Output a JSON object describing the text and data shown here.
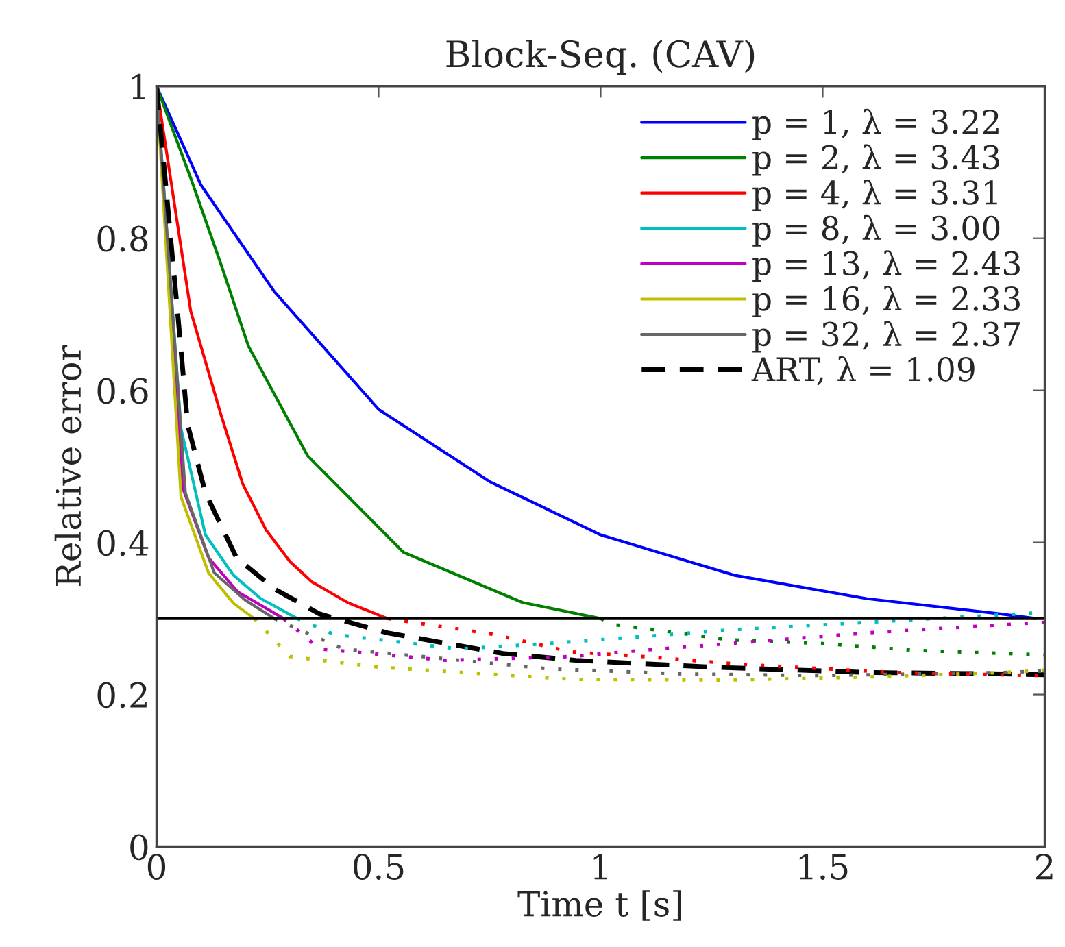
{
  "chart_data": {
    "type": "line",
    "title": "Block-Seq. (CAV)",
    "xlabel": "Time t [s]",
    "ylabel": "Relative error",
    "xlim": [
      0,
      2
    ],
    "ylim": [
      0,
      1
    ],
    "xticks": [
      0,
      0.5,
      1,
      1.5,
      2
    ],
    "yticks": [
      0,
      0.2,
      0.4,
      0.6,
      0.8,
      1
    ],
    "grid": false,
    "legend": "top right",
    "marker": "none",
    "ref_lines": [
      {
        "axis": "y",
        "value": 0.3,
        "color": "#000000",
        "line_style": "solid"
      }
    ],
    "series": [
      {
        "name": "p = 1, λ = 3.22",
        "color": "#0000ff",
        "line_style": "solid",
        "x": [
          0,
          0.1,
          0.265,
          0.5,
          0.75,
          1.0,
          1.3,
          1.6,
          1.9,
          1.98
        ],
        "values": [
          1,
          0.87,
          0.73,
          0.575,
          0.48,
          0.41,
          0.357,
          0.326,
          0.306,
          0.3
        ]
      },
      {
        "name": "p = 2, λ = 3.43",
        "color": "#008000",
        "line_style": "solid",
        "x": [
          0,
          0.077,
          0.145,
          0.207,
          0.34,
          0.556,
          0.824,
          1.0
        ],
        "values": [
          1,
          0.879,
          0.766,
          0.658,
          0.514,
          0.387,
          0.321,
          0.3
        ]
      },
      {
        "name": "p = 4, λ = 3.31",
        "color": "#ff0000",
        "line_style": "solid",
        "x": [
          0,
          0.077,
          0.145,
          0.194,
          0.247,
          0.3,
          0.35,
          0.43,
          0.52
        ],
        "values": [
          1,
          0.704,
          0.568,
          0.477,
          0.416,
          0.375,
          0.348,
          0.321,
          0.3
        ]
      },
      {
        "name": "p = 8, λ = 3.00",
        "color": "#00bfbf",
        "line_style": "solid",
        "x": [
          0,
          0.055,
          0.11,
          0.173,
          0.235,
          0.317
        ],
        "values": [
          1,
          0.55,
          0.41,
          0.357,
          0.326,
          0.3
        ]
      },
      {
        "name": "p = 13, λ = 2.43",
        "color": "#bf00bf",
        "line_style": "solid",
        "x": [
          0,
          0.06,
          0.117,
          0.183,
          0.286
        ],
        "values": [
          1,
          0.47,
          0.38,
          0.335,
          0.3
        ]
      },
      {
        "name": "p = 16, λ = 2.33",
        "color": "#bfbf00",
        "line_style": "solid",
        "x": [
          0,
          0.055,
          0.117,
          0.173,
          0.22
        ],
        "values": [
          1,
          0.46,
          0.36,
          0.32,
          0.3
        ]
      },
      {
        "name": "p = 32, λ = 2.37",
        "color": "#666666",
        "line_style": "solid",
        "x": [
          0,
          0.065,
          0.13,
          0.2,
          0.265
        ],
        "values": [
          1,
          0.465,
          0.36,
          0.324,
          0.3
        ]
      },
      {
        "name": "ART, λ = 1.09",
        "color": "#000000",
        "line_style": "dashed",
        "x": [
          0,
          0.05,
          0.07,
          0.11,
          0.18,
          0.265,
          0.367,
          0.52,
          0.78,
          0.944,
          1.25,
          1.6,
          1.91,
          2.0
        ],
        "values": [
          1,
          0.686,
          0.555,
          0.465,
          0.38,
          0.339,
          0.306,
          0.281,
          0.254,
          0.245,
          0.236,
          0.229,
          0.227,
          0.226
        ]
      },
      {
        "color": "#008000",
        "line_style": "dotted",
        "x": [
          1.0,
          1.03,
          1.15,
          1.29,
          1.5,
          1.71,
          1.91,
          2.0
        ],
        "values": [
          0.3,
          0.292,
          0.283,
          0.272,
          0.267,
          0.258,
          0.254,
          0.252
        ]
      },
      {
        "color": "#ff0000",
        "line_style": "dotted",
        "x": [
          0.52,
          0.75,
          0.935,
          1.12,
          1.31,
          1.66,
          1.97,
          2.0
        ],
        "values": [
          0.3,
          0.28,
          0.256,
          0.249,
          0.24,
          0.229,
          0.225,
          0.225
        ]
      },
      {
        "color": "#00bfbf",
        "line_style": "dotted",
        "x": [
          0.317,
          0.4,
          0.68,
          0.88,
          1.09,
          1.29,
          1.6,
          1.91,
          2.0
        ],
        "values": [
          0.3,
          0.279,
          0.26,
          0.267,
          0.276,
          0.285,
          0.295,
          0.305,
          0.308
        ]
      },
      {
        "color": "#bf00bf",
        "line_style": "dotted",
        "x": [
          0.286,
          0.367,
          0.65,
          0.935,
          1.09,
          1.29,
          1.6,
          1.91,
          2.0
        ],
        "values": [
          0.3,
          0.26,
          0.245,
          0.25,
          0.258,
          0.267,
          0.281,
          0.292,
          0.295
        ]
      },
      {
        "color": "#bfbf00",
        "line_style": "dotted",
        "x": [
          0.22,
          0.3,
          0.5,
          0.935,
          1.29,
          1.6,
          1.91,
          2.0
        ],
        "values": [
          0.3,
          0.25,
          0.236,
          0.22,
          0.219,
          0.223,
          0.229,
          0.232
        ]
      },
      {
        "color": "#666666",
        "line_style": "dotted",
        "x": [
          0.265,
          0.42,
          0.88,
          1.19,
          1.5,
          1.91,
          2.0
        ],
        "values": [
          0.3,
          0.26,
          0.234,
          0.227,
          0.225,
          0.229,
          0.231
        ]
      }
    ]
  }
}
